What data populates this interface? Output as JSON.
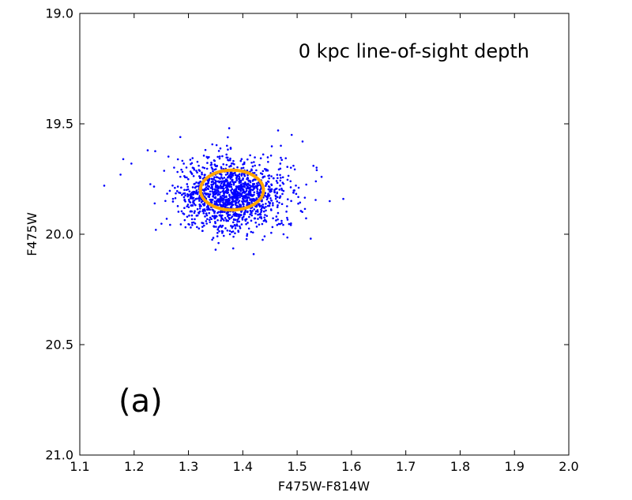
{
  "chart_data": {
    "type": "scatter",
    "title": "",
    "annotation": "0 kpc line-of-sight depth",
    "panel_label": "(a)",
    "xlabel": "F475W-F814W",
    "ylabel": "F475W",
    "xlim": [
      1.1,
      2.0
    ],
    "ylim": [
      21.0,
      19.0
    ],
    "y_inverted": true,
    "grid": false,
    "xticks": [
      1.1,
      1.2,
      1.3,
      1.4,
      1.5,
      1.6,
      1.7,
      1.8,
      1.9,
      2.0
    ],
    "xtick_labels": [
      "1.1",
      "1.2",
      "1.3",
      "1.4",
      "1.5",
      "1.6",
      "1.7",
      "1.8",
      "1.9",
      "2.0"
    ],
    "yticks": [
      19.0,
      19.5,
      20.0,
      20.5,
      21.0
    ],
    "ytick_labels": [
      "19.0",
      "19.5",
      "20.0",
      "20.5",
      "21.0"
    ],
    "series": [
      {
        "name": "stars",
        "kind": "scatter",
        "color": "#0000ff",
        "cluster": {
          "n_points": 1400,
          "center": [
            1.38,
            19.82
          ],
          "sigma": [
            0.05,
            0.08
          ],
          "seed": 7
        },
        "extra_points": [
          [
            1.145,
            19.78
          ],
          [
            1.18,
            19.66
          ],
          [
            1.175,
            19.73
          ],
          [
            1.195,
            19.68
          ],
          [
            1.225,
            19.62
          ],
          [
            1.465,
            19.53
          ],
          [
            1.49,
            19.55
          ],
          [
            1.51,
            19.58
          ],
          [
            1.585,
            19.84
          ],
          [
            1.545,
            19.74
          ],
          [
            1.53,
            19.69
          ],
          [
            1.525,
            20.02
          ],
          [
            1.42,
            20.09
          ],
          [
            1.35,
            20.07
          ],
          [
            1.26,
            19.93
          ],
          [
            1.24,
            19.98
          ],
          [
            1.285,
            19.56
          ],
          [
            1.375,
            19.52
          ],
          [
            1.56,
            19.85
          ],
          [
            1.475,
            20.0
          ]
        ]
      },
      {
        "name": "highlight-ellipse",
        "kind": "ellipse",
        "color": "#ffa500",
        "center": [
          1.38,
          19.8
        ],
        "radius_x": 0.058,
        "radius_y": 0.09
      }
    ]
  }
}
